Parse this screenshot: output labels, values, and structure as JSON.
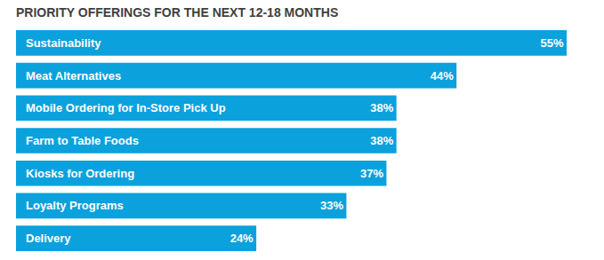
{
  "chart_data": {
    "type": "bar",
    "orientation": "horizontal",
    "title": "PRIORITY OFFERINGS FOR THE NEXT 12-18 MONTHS",
    "categories": [
      "Sustainability",
      "Meat Alternatives",
      "Mobile Ordering for In-Store Pick Up",
      "Farm to Table Foods",
      "Kiosks for Ordering",
      "Loyalty Programs",
      "Delivery"
    ],
    "values": [
      55,
      44,
      38,
      38,
      37,
      33,
      24
    ],
    "value_labels": [
      "55%",
      "44%",
      "38%",
      "38%",
      "37%",
      "33%",
      "24%"
    ],
    "color": "#0aa1dd",
    "xlim": [
      0,
      55
    ],
    "xticks": [
      0,
      55
    ],
    "grid": false,
    "data_labels": true,
    "tick_labels": "y"
  }
}
